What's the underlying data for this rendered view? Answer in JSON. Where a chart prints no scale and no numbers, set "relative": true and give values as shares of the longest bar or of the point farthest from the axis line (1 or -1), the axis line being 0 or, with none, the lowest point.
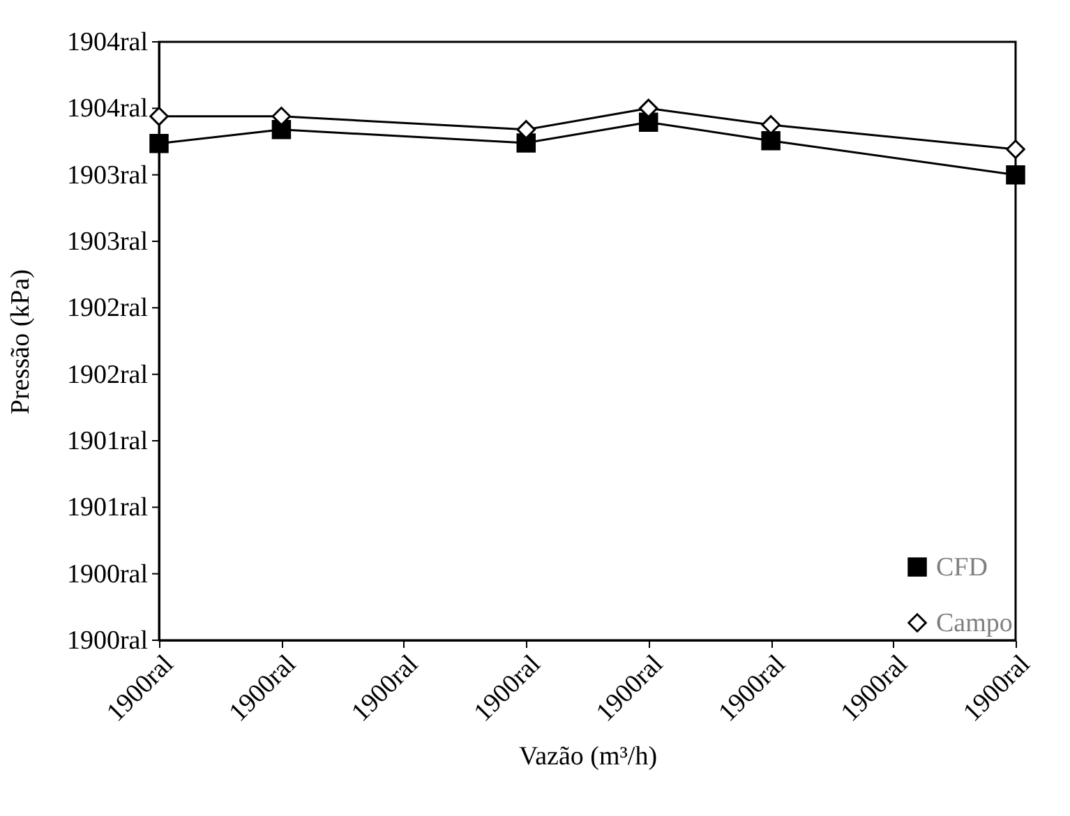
{
  "chart_data": {
    "type": "line",
    "xlabel": "Vazão (m³/h)",
    "ylabel": "Pressão (kPa)",
    "relative": true,
    "categories": [
      "1900ral",
      "1900ral",
      "1900ral",
      "1900ral",
      "1900ral",
      "1900ral",
      "1900ral",
      "1900ral"
    ],
    "series": [
      {
        "name": "CFD",
        "color": "#000000",
        "marker": "square",
        "values": [
          0.934,
          0.96,
          null,
          0.935,
          0.974,
          0.939,
          null,
          0.875
        ]
      },
      {
        "name": "Campo",
        "color": "#000000",
        "marker": "diamond",
        "values": [
          0.985,
          0.985,
          null,
          0.96,
          1,
          0.969,
          null,
          0.923
        ]
      }
    ],
    "annotations": [
      "1900ral",
      "1900ral",
      "1901ral",
      "1901ral",
      "1902ral",
      "1902ral",
      "1903ral",
      "1903ral",
      "1904ral",
      "1904ral"
    ],
    "legend": "bottom right",
    "line_style": "solid"
  }
}
